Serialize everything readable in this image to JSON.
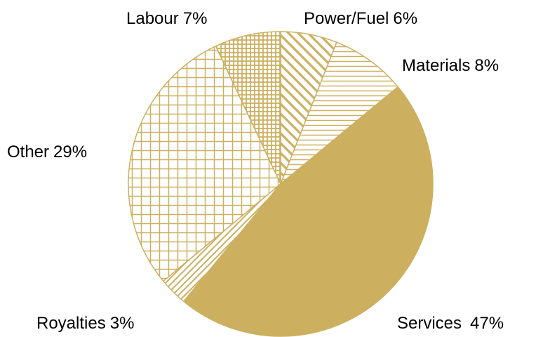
{
  "chart_data": {
    "type": "pie",
    "categories": [
      "Power/Fuel",
      "Materials",
      "Services",
      "Royalties",
      "Other",
      "Labour"
    ],
    "values": [
      6,
      8,
      47,
      3,
      29,
      7
    ],
    "value_labels": [
      "6%",
      "8%",
      "47%",
      "3%",
      "29%",
      "7%"
    ],
    "color": "#ccb060",
    "patterns": [
      "diagonal-down",
      "horizontal",
      "solid",
      "diagonal-up",
      "grid",
      "fine-grid"
    ]
  }
}
